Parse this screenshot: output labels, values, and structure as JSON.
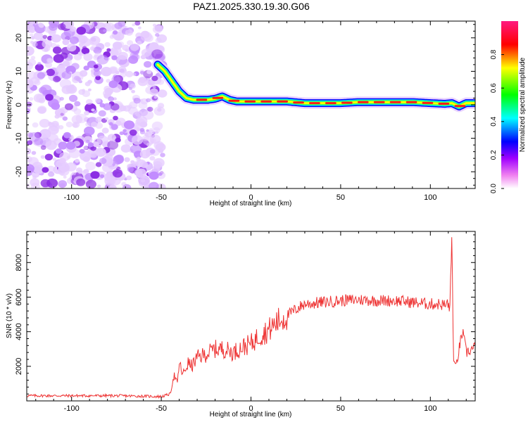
{
  "title": "PAZ1.2025.330.19.30.G06",
  "chart_data": [
    {
      "type": "heatmap",
      "name": "spectrogram",
      "xlabel": "Height of straight line (km)",
      "ylabel": "Frequency (Hz)",
      "xlim": [
        -125,
        125
      ],
      "ylim": [
        -25,
        25
      ],
      "xticks": [
        -100,
        -50,
        0,
        50,
        100
      ],
      "yticks": [
        -20,
        -10,
        0,
        10,
        20
      ],
      "noise_region_x": [
        -125,
        -50
      ],
      "ridge": {
        "x": [
          -52,
          -48,
          -44,
          -40,
          -36,
          -32,
          -28,
          -24,
          -20,
          -16,
          -12,
          -8,
          -4,
          0,
          10,
          20,
          30,
          40,
          50,
          60,
          70,
          80,
          90,
          100,
          108,
          112,
          116,
          120,
          125
        ],
        "freq": [
          12,
          10,
          7,
          4,
          2,
          1.5,
          1.5,
          1.5,
          1.8,
          2.5,
          1.5,
          1,
          1,
          1,
          1,
          1,
          0.5,
          0.5,
          0.5,
          0.8,
          0.8,
          0.8,
          0.8,
          0.5,
          0.3,
          0.5,
          -0.5,
          0.5,
          0.5
        ]
      },
      "colorbar": {
        "label": "Normalized spectral amplitude",
        "ticks": [
          0.0,
          0.2,
          0.4,
          0.6,
          0.8
        ],
        "tick_labels": [
          "0.0",
          "0.2",
          "0.4",
          "0.6",
          "0.8"
        ],
        "colors": [
          "#ffffff",
          "#ff00ff",
          "#0000ff",
          "#00ffff",
          "#00ff00",
          "#ffff00",
          "#ff0000",
          "#ff1a80"
        ]
      }
    },
    {
      "type": "line",
      "name": "snr",
      "xlabel": "Height of straight line (km)",
      "ylabel": "SNR (10 * v/v)",
      "xlim": [
        -125,
        125
      ],
      "ylim": [
        0,
        9800
      ],
      "xticks": [
        -100,
        -50,
        0,
        50,
        100
      ],
      "yticks": [
        2000,
        4000,
        6000,
        8000
      ],
      "color": "#ee3333",
      "series": [
        {
          "name": "SNR",
          "x": [
            -125,
            -100,
            -75,
            -50,
            -45,
            -43,
            -41,
            -40,
            -38,
            -35,
            -33,
            -30,
            -25,
            -20,
            -15,
            -10,
            -5,
            0,
            5,
            10,
            15,
            20,
            25,
            30,
            40,
            50,
            60,
            70,
            80,
            90,
            100,
            105,
            110,
            111,
            112,
            113,
            114,
            116,
            118,
            120,
            125
          ],
          "y": [
            300,
            300,
            300,
            250,
            400,
            1500,
            1000,
            2200,
            1500,
            2200,
            2000,
            2500,
            2700,
            3000,
            3000,
            2800,
            3100,
            3300,
            3800,
            4100,
            4600,
            4900,
            5300,
            5600,
            5700,
            5800,
            5850,
            5800,
            5800,
            5700,
            5600,
            5600,
            5500,
            5700,
            9500,
            2200,
            1800,
            3000,
            4000,
            2800,
            3100
          ]
        }
      ]
    }
  ]
}
